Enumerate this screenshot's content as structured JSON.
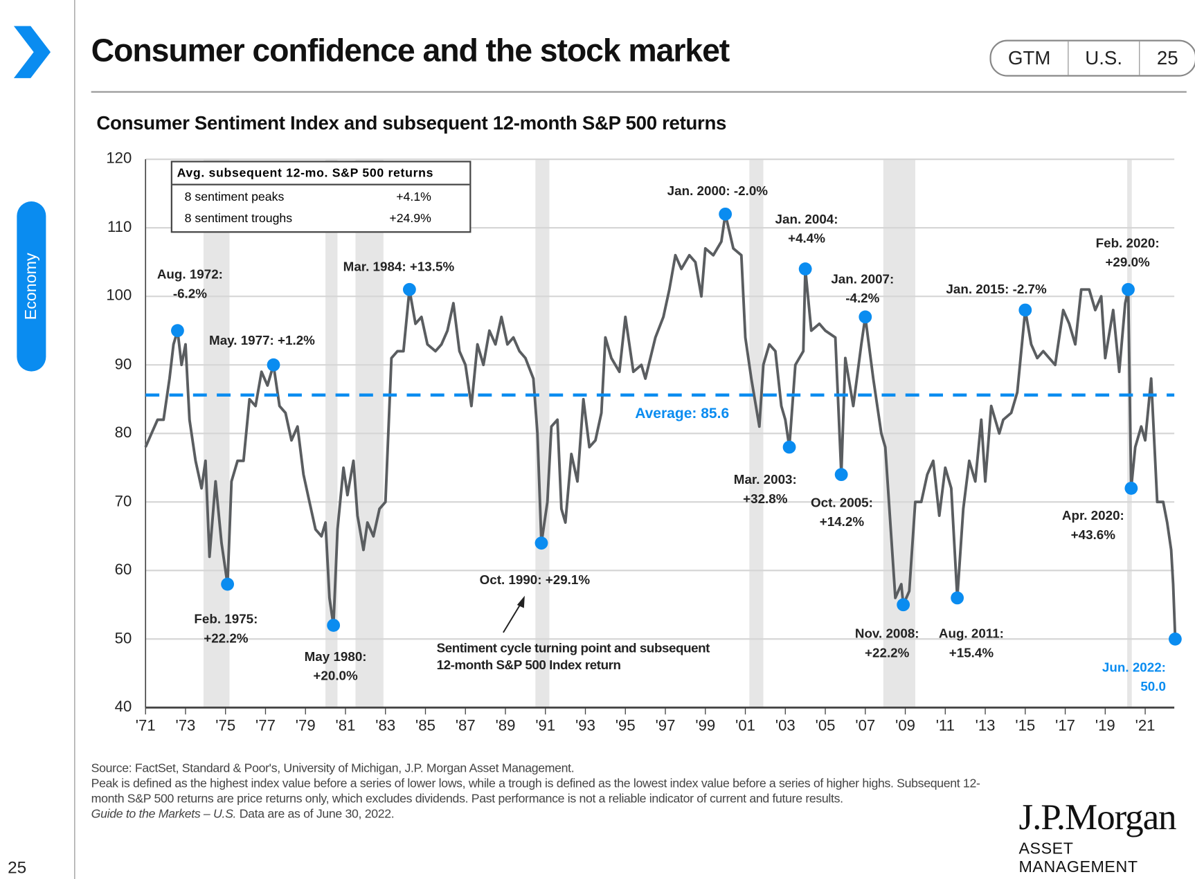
{
  "header": {
    "title": "Consumer confidence and the stock market",
    "badges": [
      "GTM",
      "U.S.",
      "25"
    ],
    "section_tab": "Economy",
    "accent_color": "#0a8cf0"
  },
  "chart_data": {
    "type": "line",
    "title": "Consumer Sentiment Index and subsequent 12-month S&P 500 returns",
    "ylim": [
      40,
      120
    ],
    "yticks": [
      40,
      50,
      60,
      70,
      80,
      90,
      100,
      110,
      120
    ],
    "xlim": [
      1971,
      2022.5
    ],
    "xtick_labels": [
      "'71",
      "'73",
      "'75",
      "'77",
      "'79",
      "'81",
      "'83",
      "'85",
      "'87",
      "'89",
      "'91",
      "'93",
      "'95",
      "'97",
      "'99",
      "'01",
      "'03",
      "'05",
      "'07",
      "'09",
      "'11",
      "'13",
      "'15",
      "'17",
      "'19",
      "'21"
    ],
    "grid": true,
    "line_color": "#5a5d60",
    "marker_color": "#0a8cf0",
    "average": {
      "value": 85.6,
      "label": "Average: 85.6"
    },
    "recessions": [
      [
        1973.9,
        1975.2
      ],
      [
        1980.0,
        1980.6
      ],
      [
        1981.5,
        1982.9
      ],
      [
        1990.5,
        1991.2
      ],
      [
        2001.2,
        2001.9
      ],
      [
        2007.9,
        2009.5
      ],
      [
        2020.1,
        2020.3
      ]
    ],
    "series": [
      {
        "points": [
          [
            1971.0,
            78
          ],
          [
            1971.3,
            80
          ],
          [
            1971.6,
            82
          ],
          [
            1971.9,
            82
          ],
          [
            1972.2,
            88
          ],
          [
            1972.4,
            93
          ],
          [
            1972.6,
            95
          ],
          [
            1972.8,
            90
          ],
          [
            1973.0,
            93
          ],
          [
            1973.2,
            82
          ],
          [
            1973.5,
            76
          ],
          [
            1973.8,
            72
          ],
          [
            1974.0,
            76
          ],
          [
            1974.2,
            62
          ],
          [
            1974.5,
            73
          ],
          [
            1974.8,
            64
          ],
          [
            1975.1,
            58
          ],
          [
            1975.3,
            73
          ],
          [
            1975.6,
            76
          ],
          [
            1975.9,
            76
          ],
          [
            1976.2,
            85
          ],
          [
            1976.5,
            84
          ],
          [
            1976.8,
            89
          ],
          [
            1977.1,
            87
          ],
          [
            1977.4,
            90
          ],
          [
            1977.7,
            84
          ],
          [
            1978.0,
            83
          ],
          [
            1978.3,
            79
          ],
          [
            1978.6,
            81
          ],
          [
            1978.9,
            74
          ],
          [
            1979.2,
            70
          ],
          [
            1979.5,
            66
          ],
          [
            1979.8,
            65
          ],
          [
            1980.0,
            67
          ],
          [
            1980.2,
            56
          ],
          [
            1980.4,
            52
          ],
          [
            1980.6,
            66
          ],
          [
            1980.9,
            75
          ],
          [
            1981.1,
            71
          ],
          [
            1981.4,
            76
          ],
          [
            1981.6,
            68
          ],
          [
            1981.9,
            63
          ],
          [
            1982.1,
            67
          ],
          [
            1982.4,
            65
          ],
          [
            1982.7,
            69
          ],
          [
            1983.0,
            70
          ],
          [
            1983.3,
            91
          ],
          [
            1983.6,
            92
          ],
          [
            1983.9,
            92
          ],
          [
            1984.2,
            101
          ],
          [
            1984.5,
            96
          ],
          [
            1984.8,
            97
          ],
          [
            1985.1,
            93
          ],
          [
            1985.5,
            92
          ],
          [
            1985.8,
            93
          ],
          [
            1986.1,
            95
          ],
          [
            1986.4,
            99
          ],
          [
            1986.7,
            92
          ],
          [
            1987.0,
            90
          ],
          [
            1987.3,
            84
          ],
          [
            1987.6,
            93
          ],
          [
            1987.9,
            90
          ],
          [
            1988.2,
            95
          ],
          [
            1988.5,
            93
          ],
          [
            1988.8,
            97
          ],
          [
            1989.1,
            93
          ],
          [
            1989.4,
            94
          ],
          [
            1989.7,
            92
          ],
          [
            1990.0,
            91
          ],
          [
            1990.4,
            88
          ],
          [
            1990.6,
            80
          ],
          [
            1990.8,
            64
          ],
          [
            1991.1,
            70
          ],
          [
            1991.3,
            81
          ],
          [
            1991.6,
            82
          ],
          [
            1991.8,
            69
          ],
          [
            1992.0,
            67
          ],
          [
            1992.3,
            77
          ],
          [
            1992.6,
            73
          ],
          [
            1992.9,
            85
          ],
          [
            1993.2,
            78
          ],
          [
            1993.5,
            79
          ],
          [
            1993.8,
            83
          ],
          [
            1994.0,
            94
          ],
          [
            1994.3,
            91
          ],
          [
            1994.7,
            89
          ],
          [
            1995.0,
            97
          ],
          [
            1995.4,
            89
          ],
          [
            1995.8,
            90
          ],
          [
            1996.0,
            88
          ],
          [
            1996.5,
            94
          ],
          [
            1996.9,
            97
          ],
          [
            1997.2,
            101
          ],
          [
            1997.5,
            106
          ],
          [
            1997.8,
            104
          ],
          [
            1998.2,
            106
          ],
          [
            1998.5,
            105
          ],
          [
            1998.8,
            100
          ],
          [
            1999.0,
            107
          ],
          [
            1999.4,
            106
          ],
          [
            1999.8,
            108
          ],
          [
            2000.0,
            112
          ],
          [
            2000.4,
            107
          ],
          [
            2000.8,
            106
          ],
          [
            2001.0,
            94
          ],
          [
            2001.3,
            88
          ],
          [
            2001.7,
            81
          ],
          [
            2001.9,
            90
          ],
          [
            2002.2,
            93
          ],
          [
            2002.5,
            92
          ],
          [
            2002.8,
            84
          ],
          [
            2003.0,
            82
          ],
          [
            2003.2,
            78
          ],
          [
            2003.5,
            90
          ],
          [
            2003.9,
            92
          ],
          [
            2004.0,
            104
          ],
          [
            2004.3,
            95
          ],
          [
            2004.7,
            96
          ],
          [
            2005.0,
            95
          ],
          [
            2005.5,
            94
          ],
          [
            2005.8,
            74
          ],
          [
            2006.0,
            91
          ],
          [
            2006.4,
            84
          ],
          [
            2006.8,
            93
          ],
          [
            2007.0,
            97
          ],
          [
            2007.4,
            88
          ],
          [
            2007.8,
            80
          ],
          [
            2008.0,
            78
          ],
          [
            2008.5,
            56
          ],
          [
            2008.8,
            58
          ],
          [
            2008.9,
            55
          ],
          [
            2009.2,
            57
          ],
          [
            2009.5,
            70
          ],
          [
            2009.8,
            70
          ],
          [
            2010.1,
            74
          ],
          [
            2010.4,
            76
          ],
          [
            2010.7,
            68
          ],
          [
            2011.0,
            75
          ],
          [
            2011.3,
            72
          ],
          [
            2011.6,
            56
          ],
          [
            2011.9,
            69
          ],
          [
            2012.2,
            76
          ],
          [
            2012.5,
            73
          ],
          [
            2012.8,
            82
          ],
          [
            2013.0,
            73
          ],
          [
            2013.3,
            84
          ],
          [
            2013.7,
            80
          ],
          [
            2013.9,
            82
          ],
          [
            2014.3,
            83
          ],
          [
            2014.6,
            86
          ],
          [
            2015.0,
            98
          ],
          [
            2015.3,
            93
          ],
          [
            2015.6,
            91
          ],
          [
            2015.9,
            92
          ],
          [
            2016.2,
            91
          ],
          [
            2016.5,
            90
          ],
          [
            2016.9,
            98
          ],
          [
            2017.2,
            96
          ],
          [
            2017.5,
            93
          ],
          [
            2017.8,
            101
          ],
          [
            2018.2,
            101
          ],
          [
            2018.5,
            98
          ],
          [
            2018.8,
            100
          ],
          [
            2019.0,
            91
          ],
          [
            2019.4,
            98
          ],
          [
            2019.7,
            89
          ],
          [
            2020.0,
            99
          ],
          [
            2020.15,
            101
          ],
          [
            2020.3,
            72
          ],
          [
            2020.5,
            78
          ],
          [
            2020.8,
            81
          ],
          [
            2021.0,
            79
          ],
          [
            2021.3,
            88
          ],
          [
            2021.6,
            70
          ],
          [
            2021.9,
            70
          ],
          [
            2022.1,
            67
          ],
          [
            2022.3,
            63
          ],
          [
            2022.4,
            58
          ],
          [
            2022.5,
            50
          ]
        ]
      }
    ],
    "markers": [
      {
        "x": 1972.6,
        "y": 95,
        "label": [
          "Aug. 1972:",
          "-6.2%"
        ]
      },
      {
        "x": 1975.1,
        "y": 58,
        "label": [
          "Feb. 1975:",
          "+22.2%"
        ]
      },
      {
        "x": 1977.4,
        "y": 90,
        "label": [
          "May. 1977: +1.2%"
        ]
      },
      {
        "x": 1980.4,
        "y": 52,
        "label": [
          "May 1980:",
          "+20.0%"
        ]
      },
      {
        "x": 1984.2,
        "y": 101,
        "label": [
          "Mar. 1984: +13.5%"
        ]
      },
      {
        "x": 1990.8,
        "y": 64,
        "label": [
          "Oct. 1990: +29.1%"
        ]
      },
      {
        "x": 2000.0,
        "y": 112,
        "label": [
          "Jan. 2000: -2.0%"
        ]
      },
      {
        "x": 2003.2,
        "y": 78,
        "label": [
          "Mar. 2003:",
          "+32.8%"
        ]
      },
      {
        "x": 2004.0,
        "y": 104,
        "label": [
          "Jan. 2004:",
          "+4.4%"
        ]
      },
      {
        "x": 2005.8,
        "y": 74,
        "label": [
          "Oct. 2005:",
          "+14.2%"
        ]
      },
      {
        "x": 2007.0,
        "y": 97,
        "label": [
          "Jan. 2007:",
          "-4.2%"
        ]
      },
      {
        "x": 2008.9,
        "y": 55,
        "label": [
          "Nov. 2008:",
          "+22.2%"
        ]
      },
      {
        "x": 2011.6,
        "y": 56,
        "label": [
          "Aug. 2011:",
          "+15.4%"
        ]
      },
      {
        "x": 2015.0,
        "y": 98,
        "label": [
          "Jan. 2015: -2.7%"
        ]
      },
      {
        "x": 2020.15,
        "y": 101,
        "label": [
          "Feb. 2020:",
          "+29.0%"
        ]
      },
      {
        "x": 2020.3,
        "y": 72,
        "label": [
          "Apr. 2020:",
          "+43.6%"
        ]
      },
      {
        "x": 2022.5,
        "y": 50,
        "label": [
          "Jun. 2022:",
          "50.0"
        ]
      }
    ],
    "annotation": [
      "Sentiment cycle turning point and subsequent",
      "12-month S&P 500 Index return"
    ],
    "legend_box": {
      "header": "Avg. subsequent 12-mo. S&P 500 returns",
      "rows": [
        {
          "label": "8 sentiment peaks",
          "value": "+4.1%"
        },
        {
          "label": "8 sentiment troughs",
          "value": "+24.9%"
        }
      ]
    }
  },
  "footer": {
    "lines": [
      "Source: FactSet, Standard & Poor's, University of Michigan, J.P. Morgan Asset Management.",
      "Peak is defined as the highest index value before a series of lower lows, while a trough is defined as the lowest index value before a series of higher highs. Subsequent 12-month S&P 500 returns are price returns only, which excludes dividends. Past performance is not a reliable indicator of current and future results."
    ],
    "guide_italic": "Guide to the Markets – U.S.",
    "guide_rest": " Data are as of June 30, 2022.",
    "logo_name": "J.P.Morgan",
    "logo_sub": "ASSET MANAGEMENT",
    "page_number": "25"
  }
}
